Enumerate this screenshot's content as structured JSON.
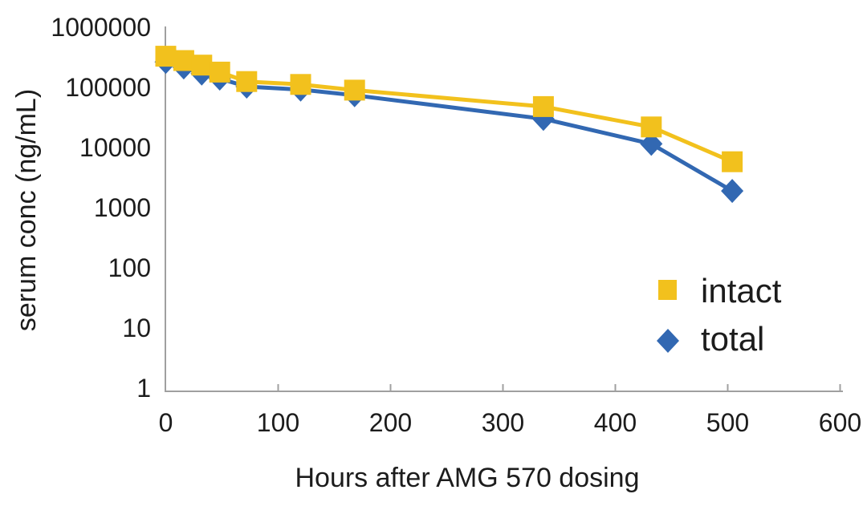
{
  "chart_data": {
    "type": "line",
    "title": "",
    "xlabel": "Hours after AMG 570 dosing",
    "ylabel": "serum conc (ng/mL)",
    "x_scale": "linear",
    "y_scale": "log",
    "xlim": [
      0,
      600
    ],
    "ylim": [
      1,
      1000000
    ],
    "x_ticks": [
      0,
      100,
      200,
      300,
      400,
      500,
      600
    ],
    "y_ticks": [
      1000000,
      100000,
      10000,
      1000,
      100,
      10,
      1
    ],
    "grid": false,
    "legend_position": "inside-right",
    "x": [
      0,
      16,
      32,
      48,
      72,
      120,
      168,
      336,
      432,
      504
    ],
    "series": [
      {
        "name": "intact",
        "marker": "square",
        "color": "#F2C11D",
        "values": [
          330000,
          280000,
          235000,
          180000,
          125000,
          112000,
          90000,
          48000,
          22000,
          5800
        ]
      },
      {
        "name": "total",
        "marker": "diamond",
        "color": "#3268B2",
        "values": [
          265000,
          215000,
          170000,
          140000,
          103000,
          92000,
          74000,
          30000,
          11500,
          1900
        ]
      }
    ],
    "axis_color": "#A0A0A0",
    "text_color": "#1C1C1C"
  }
}
